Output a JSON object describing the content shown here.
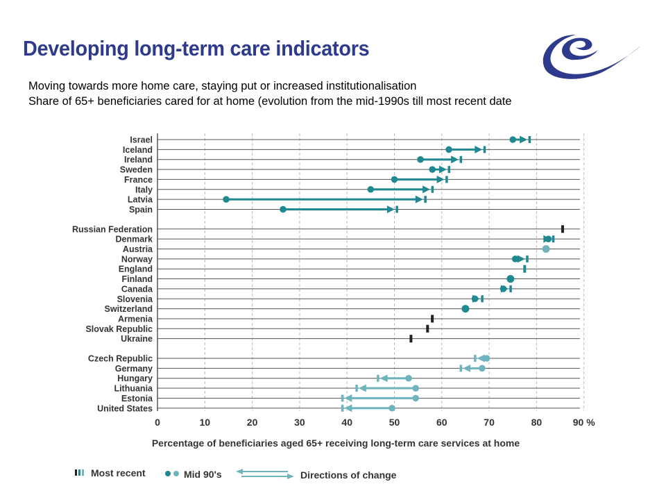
{
  "slide": {
    "title": "Developing long-term care indicators",
    "subtitle_1": "Moving towards more home care, staying put or increased institutionalisation",
    "subtitle_2": "Share of 65+ beneficiaries cared for at home (evolution from the mid-1990s till most recent date"
  },
  "logo_icon": "council-of-europe-swirl-logo",
  "colors": {
    "title": "#2e3a8c",
    "dark_teal": "#1f8890",
    "light_teal": "#6fb4bd",
    "black_marker": "#222222",
    "row_line": "#555555",
    "grid": "#bbbbbb",
    "logo": "#2e3a8c"
  },
  "chart_data": {
    "type": "dumbbell",
    "xlabel": "Percentage of beneficiaries aged 65+ receiving long-term care services at home",
    "xlim": [
      0,
      90
    ],
    "x_ticks": [
      "0",
      "10",
      "20",
      "30",
      "40",
      "50",
      "60",
      "70",
      "80",
      "90 %"
    ],
    "grid": "vertical dashed",
    "legend": {
      "most_recent": "Most recent",
      "mid_90s": "Mid 90's",
      "direction": "Directions of change",
      "placement": "bottom-left"
    },
    "rows": [
      {
        "country": "Israel",
        "mid90s": 75,
        "recent": 78.5,
        "color": "dark",
        "group": 1
      },
      {
        "country": "Iceland",
        "mid90s": 61.5,
        "recent": 69,
        "color": "dark",
        "group": 1
      },
      {
        "country": "Ireland",
        "mid90s": 55.5,
        "recent": 64,
        "color": "dark",
        "group": 1
      },
      {
        "country": "Sweden",
        "mid90s": 58,
        "recent": 61.5,
        "color": "dark",
        "group": 1
      },
      {
        "country": "France",
        "mid90s": 50,
        "recent": 61,
        "color": "dark",
        "group": 1
      },
      {
        "country": "Italy",
        "mid90s": 45,
        "recent": 58,
        "color": "dark",
        "group": 1
      },
      {
        "country": "Latvia",
        "mid90s": 14.5,
        "recent": 56.5,
        "color": "dark",
        "group": 1
      },
      {
        "country": "Spain",
        "mid90s": 26.5,
        "recent": 50.5,
        "color": "dark",
        "group": 1
      },
      {
        "country": "Russian Federation",
        "mid90s": null,
        "recent": 85.5,
        "color": "black",
        "group": 2
      },
      {
        "country": "Denmark",
        "mid90s": 82.5,
        "recent": 83.5,
        "color": "dark",
        "group": 2
      },
      {
        "country": "Austria",
        "mid90s": 82,
        "recent": null,
        "color": "light",
        "group": 2
      },
      {
        "country": "Norway",
        "mid90s": 75.5,
        "recent": 78,
        "color": "dark",
        "group": 2
      },
      {
        "country": "England",
        "mid90s": null,
        "recent": 77.5,
        "color": "dark",
        "group": 2
      },
      {
        "country": "Finland",
        "mid90s": 74.5,
        "recent": null,
        "color": "dark",
        "group": 2
      },
      {
        "country": "Canada",
        "mid90s": 73,
        "recent": 74.5,
        "color": "dark",
        "group": 2
      },
      {
        "country": "Slovenia",
        "mid90s": 67,
        "recent": 68.5,
        "color": "dark",
        "group": 2
      },
      {
        "country": "Switzerland",
        "mid90s": 65,
        "recent": null,
        "color": "dark",
        "group": 2
      },
      {
        "country": "Armenia",
        "mid90s": null,
        "recent": 58,
        "color": "black",
        "group": 2
      },
      {
        "country": "Slovak Republic",
        "mid90s": null,
        "recent": 57,
        "color": "black",
        "group": 2
      },
      {
        "country": "Ukraine",
        "mid90s": null,
        "recent": 53.5,
        "color": "black",
        "group": 2
      },
      {
        "country": "Czech Republic",
        "mid90s": 69.5,
        "recent": 67,
        "color": "light",
        "group": 3
      },
      {
        "country": "Germany",
        "mid90s": 68.5,
        "recent": 64,
        "color": "light",
        "group": 3
      },
      {
        "country": "Hungary",
        "mid90s": 53,
        "recent": 46.5,
        "color": "light",
        "group": 3
      },
      {
        "country": "Lithuania",
        "mid90s": 54.5,
        "recent": 42,
        "color": "light",
        "group": 3
      },
      {
        "country": "Estonia",
        "mid90s": 54.5,
        "recent": 39,
        "color": "light",
        "group": 3
      },
      {
        "country": "United States",
        "mid90s": 49.5,
        "recent": 39,
        "color": "light",
        "group": 3
      }
    ]
  }
}
